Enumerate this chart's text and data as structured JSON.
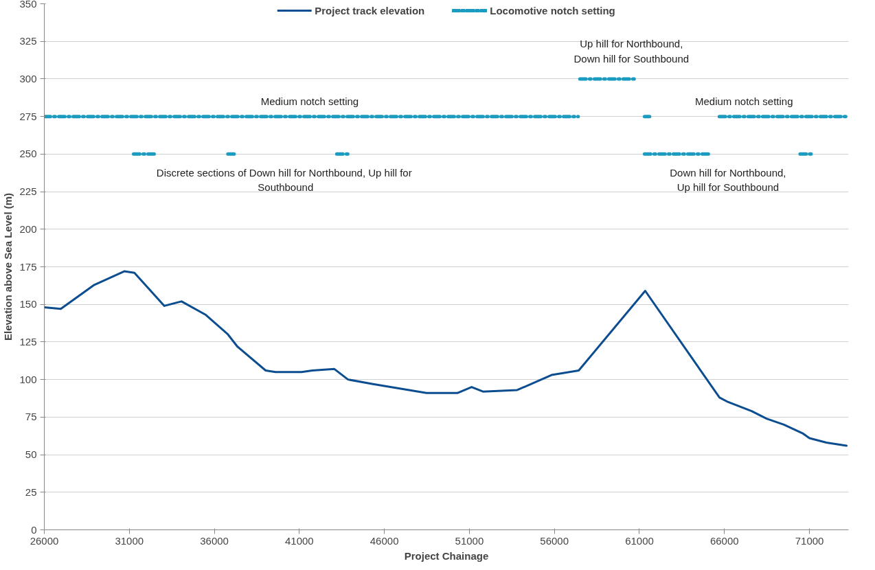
{
  "chart_data": {
    "type": "line",
    "xlabel": "Project Chainage",
    "ylabel": "Elevation above Sea Level (m)",
    "xlim": [
      26000,
      73300
    ],
    "xticks": [
      26000,
      31000,
      36000,
      41000,
      46000,
      51000,
      56000,
      61000,
      66000,
      71000
    ],
    "ylim": [
      0,
      350
    ],
    "yticks": [
      0,
      25,
      50,
      75,
      100,
      125,
      150,
      175,
      200,
      225,
      250,
      275,
      300,
      325,
      350
    ],
    "grid": "y",
    "legend": "top",
    "marker": "none",
    "series": [
      {
        "name": "Project track elevation",
        "color": "#0b4d8f",
        "line_style": "solid",
        "x": [
          26000,
          26970,
          28940,
          30700,
          31300,
          33060,
          34070,
          35500,
          36800,
          37350,
          39020,
          39600,
          41130,
          41760,
          43060,
          43860,
          45330,
          48480,
          50290,
          51130,
          51800,
          53810,
          55830,
          57430,
          61340,
          65710,
          66220,
          67600,
          68480,
          69500,
          70630,
          71000,
          72000,
          73180
        ],
        "values": [
          148,
          147,
          163,
          172,
          171,
          149,
          152,
          143,
          130,
          122,
          106,
          105,
          105,
          106,
          107,
          100,
          97,
          91,
          91,
          95,
          92,
          93,
          103,
          106,
          159,
          88,
          85,
          79,
          74,
          70,
          64,
          61,
          58,
          56
        ]
      },
      {
        "name": "Locomotive notch setting",
        "color": "#1a9bbf",
        "line_style": "dashdot",
        "x": [
          26000,
          57400
        ],
        "values": [
          275,
          275
        ]
      },
      {
        "color": "#1a9bbf",
        "line_style": "dashdot",
        "x": [
          57500,
          60750
        ],
        "values": [
          300,
          300
        ]
      },
      {
        "color": "#1a9bbf",
        "line_style": "dashdot",
        "x": [
          61300,
          61600
        ],
        "values": [
          275,
          275
        ]
      },
      {
        "color": "#1a9bbf",
        "line_style": "dashdot",
        "x": [
          65700,
          73200
        ],
        "values": [
          275,
          275
        ]
      },
      {
        "color": "#1a9bbf",
        "line_style": "dashdot",
        "x": [
          31250,
          32650
        ],
        "values": [
          250,
          250
        ]
      },
      {
        "color": "#1a9bbf",
        "line_style": "dashdot",
        "x": [
          36800,
          37200
        ],
        "values": [
          250,
          250
        ]
      },
      {
        "color": "#1a9bbf",
        "line_style": "dashdot",
        "x": [
          43200,
          43850
        ],
        "values": [
          250,
          250
        ]
      },
      {
        "color": "#1a9bbf",
        "line_style": "dashdot",
        "x": [
          61300,
          65100
        ],
        "values": [
          250,
          250
        ]
      },
      {
        "color": "#1a9bbf",
        "line_style": "dashdot",
        "x": [
          70450,
          71150
        ],
        "values": [
          250,
          250
        ]
      }
    ],
    "annotations": [
      "Medium notch setting",
      "Discrete sections of Down hill for Northbound,  Up hill for\nSouthbound",
      "Up hill for Northbound,\nDown hill for Southbound",
      "Medium notch setting",
      "Down hill for Northbound,\nUp hill for Southbound"
    ]
  }
}
